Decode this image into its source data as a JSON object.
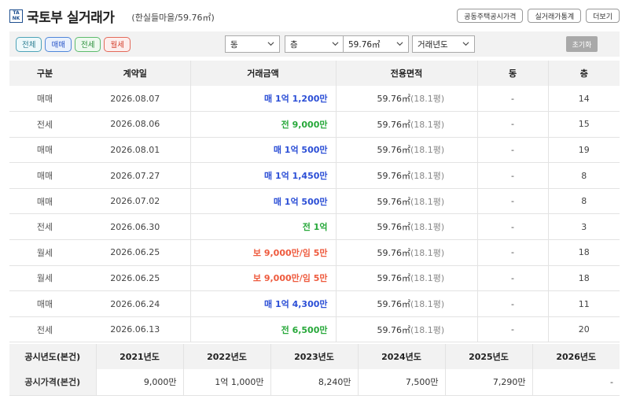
{
  "header": {
    "logo_line1": "TA",
    "logo_line2": "NK",
    "title": "국토부 실거래가",
    "subtitle": "(한실들마을/59.76㎡)",
    "buttons": [
      "공동주택공시가격",
      "실거래가통계",
      "더보기"
    ]
  },
  "filters": {
    "type_chips": [
      "전체",
      "매매",
      "전세",
      "월세"
    ],
    "dong_select": "동",
    "floor_select": "층",
    "area_select": "59.76㎡",
    "year_select": "거래년도",
    "reset_label": "초기화"
  },
  "table": {
    "columns": [
      "구분",
      "계약일",
      "거래금액",
      "전용면적",
      "동",
      "층"
    ],
    "rows": [
      {
        "type": "매매",
        "date": "2026.08.07",
        "price": "매 1억 1,200만",
        "kind": "sale",
        "area": "59.76㎡",
        "pyeong": "(18.1평)",
        "dong": "-",
        "floor": "14"
      },
      {
        "type": "전세",
        "date": "2026.08.06",
        "price": "전 9,000만",
        "kind": "jeonse",
        "area": "59.76㎡",
        "pyeong": "(18.1평)",
        "dong": "-",
        "floor": "15"
      },
      {
        "type": "매매",
        "date": "2026.08.01",
        "price": "매 1억 500만",
        "kind": "sale",
        "area": "59.76㎡",
        "pyeong": "(18.1평)",
        "dong": "-",
        "floor": "19"
      },
      {
        "type": "매매",
        "date": "2026.07.27",
        "price": "매 1억 1,450만",
        "kind": "sale",
        "area": "59.76㎡",
        "pyeong": "(18.1평)",
        "dong": "-",
        "floor": "8"
      },
      {
        "type": "매매",
        "date": "2026.07.02",
        "price": "매 1억 500만",
        "kind": "sale",
        "area": "59.76㎡",
        "pyeong": "(18.1평)",
        "dong": "-",
        "floor": "8"
      },
      {
        "type": "전세",
        "date": "2026.06.30",
        "price": "전 1억",
        "kind": "jeonse",
        "area": "59.76㎡",
        "pyeong": "(18.1평)",
        "dong": "-",
        "floor": "3"
      },
      {
        "type": "월세",
        "date": "2026.06.25",
        "price": "보 9,000만/임 5만",
        "kind": "monthly",
        "area": "59.76㎡",
        "pyeong": "(18.1평)",
        "dong": "-",
        "floor": "18"
      },
      {
        "type": "월세",
        "date": "2026.06.25",
        "price": "보 9,000만/임 5만",
        "kind": "monthly",
        "area": "59.76㎡",
        "pyeong": "(18.1평)",
        "dong": "-",
        "floor": "18"
      },
      {
        "type": "매매",
        "date": "2026.06.24",
        "price": "매 1억 4,300만",
        "kind": "sale",
        "area": "59.76㎡",
        "pyeong": "(18.1평)",
        "dong": "-",
        "floor": "11"
      },
      {
        "type": "전세",
        "date": "2026.06.13",
        "price": "전 6,500만",
        "kind": "jeonse",
        "area": "59.76㎡",
        "pyeong": "(18.1평)",
        "dong": "-",
        "floor": "20"
      }
    ]
  },
  "public_price": {
    "year_header": "공시년도(본건)",
    "price_header": "공시가격(본건)",
    "years": [
      "2021년도",
      "2022년도",
      "2023년도",
      "2024년도",
      "2025년도",
      "2026년도"
    ],
    "prices": [
      "9,000만",
      "1억 1,000만",
      "8,240만",
      "7,500만",
      "7,290만",
      "-"
    ]
  },
  "colors": {
    "sale": "#2c4fd6",
    "jeonse": "#27a83a",
    "monthly": "#ee5a3d",
    "header_bg": "#f2f2f2"
  }
}
